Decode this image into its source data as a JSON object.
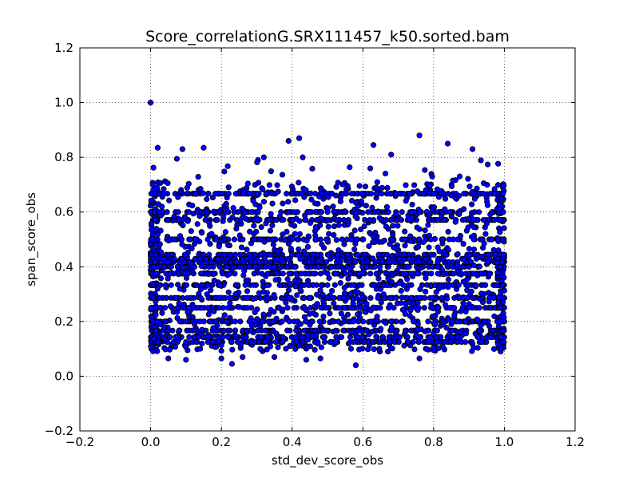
{
  "chart_data": {
    "type": "scatter",
    "title": "Score_correlationG.SRX111457_k50.sorted.bam",
    "xlabel": "std_dev_score_obs",
    "ylabel": "span_score_obs",
    "xlim": [
      -0.2,
      1.2
    ],
    "ylim": [
      -0.2,
      1.2
    ],
    "xticks": [
      "−0.2",
      "0.0",
      "0.2",
      "0.4",
      "0.6",
      "0.8",
      "1.0",
      "1.2"
    ],
    "yticks": [
      "−0.2",
      "0.0",
      "0.2",
      "0.4",
      "0.6",
      "0.8",
      "1.0",
      "1.2"
    ],
    "xtick_values": [
      -0.2,
      0.0,
      0.2,
      0.4,
      0.6,
      0.8,
      1.0,
      1.2
    ],
    "ytick_values": [
      -0.2,
      0.0,
      0.2,
      0.4,
      0.6,
      0.8,
      1.0,
      1.2
    ],
    "grid": true,
    "grid_style": "dotted",
    "marker_color": "#0000ff",
    "marker_edge": "#000000",
    "outlier_points": [
      {
        "x": 0.0,
        "y": 1.0
      },
      {
        "x": 0.76,
        "y": 0.88
      },
      {
        "x": 0.42,
        "y": 0.87
      },
      {
        "x": 0.39,
        "y": 0.86
      },
      {
        "x": 0.84,
        "y": 0.85
      },
      {
        "x": 0.63,
        "y": 0.845
      },
      {
        "x": 0.15,
        "y": 0.835
      },
      {
        "x": 0.02,
        "y": 0.835
      },
      {
        "x": 0.91,
        "y": 0.83
      },
      {
        "x": 0.09,
        "y": 0.83
      },
      {
        "x": 0.32,
        "y": 0.8
      },
      {
        "x": 0.43,
        "y": 0.8
      },
      {
        "x": 0.68,
        "y": 0.81
      },
      {
        "x": 0.58,
        "y": 0.04
      },
      {
        "x": 0.23,
        "y": 0.045
      },
      {
        "x": 0.05,
        "y": 0.065
      },
      {
        "x": 0.1,
        "y": 0.06
      },
      {
        "x": 0.35,
        "y": 0.07
      },
      {
        "x": 0.44,
        "y": 0.06
      },
      {
        "x": 0.76,
        "y": 0.065
      },
      {
        "x": 0.48,
        "y": 0.065
      },
      {
        "x": 0.26,
        "y": 0.07
      },
      {
        "x": 0.2,
        "y": 0.065
      }
    ],
    "cluster": {
      "x_range": [
        0.0,
        1.0
      ],
      "y_range": [
        0.04,
        0.88
      ],
      "dense_bands_y": [
        0.125,
        0.143,
        0.167,
        0.2,
        0.25,
        0.286,
        0.333,
        0.375,
        0.4,
        0.417,
        0.429,
        0.444,
        0.5,
        0.571,
        0.6,
        0.667
      ],
      "point_count_estimate": 3500
    }
  }
}
